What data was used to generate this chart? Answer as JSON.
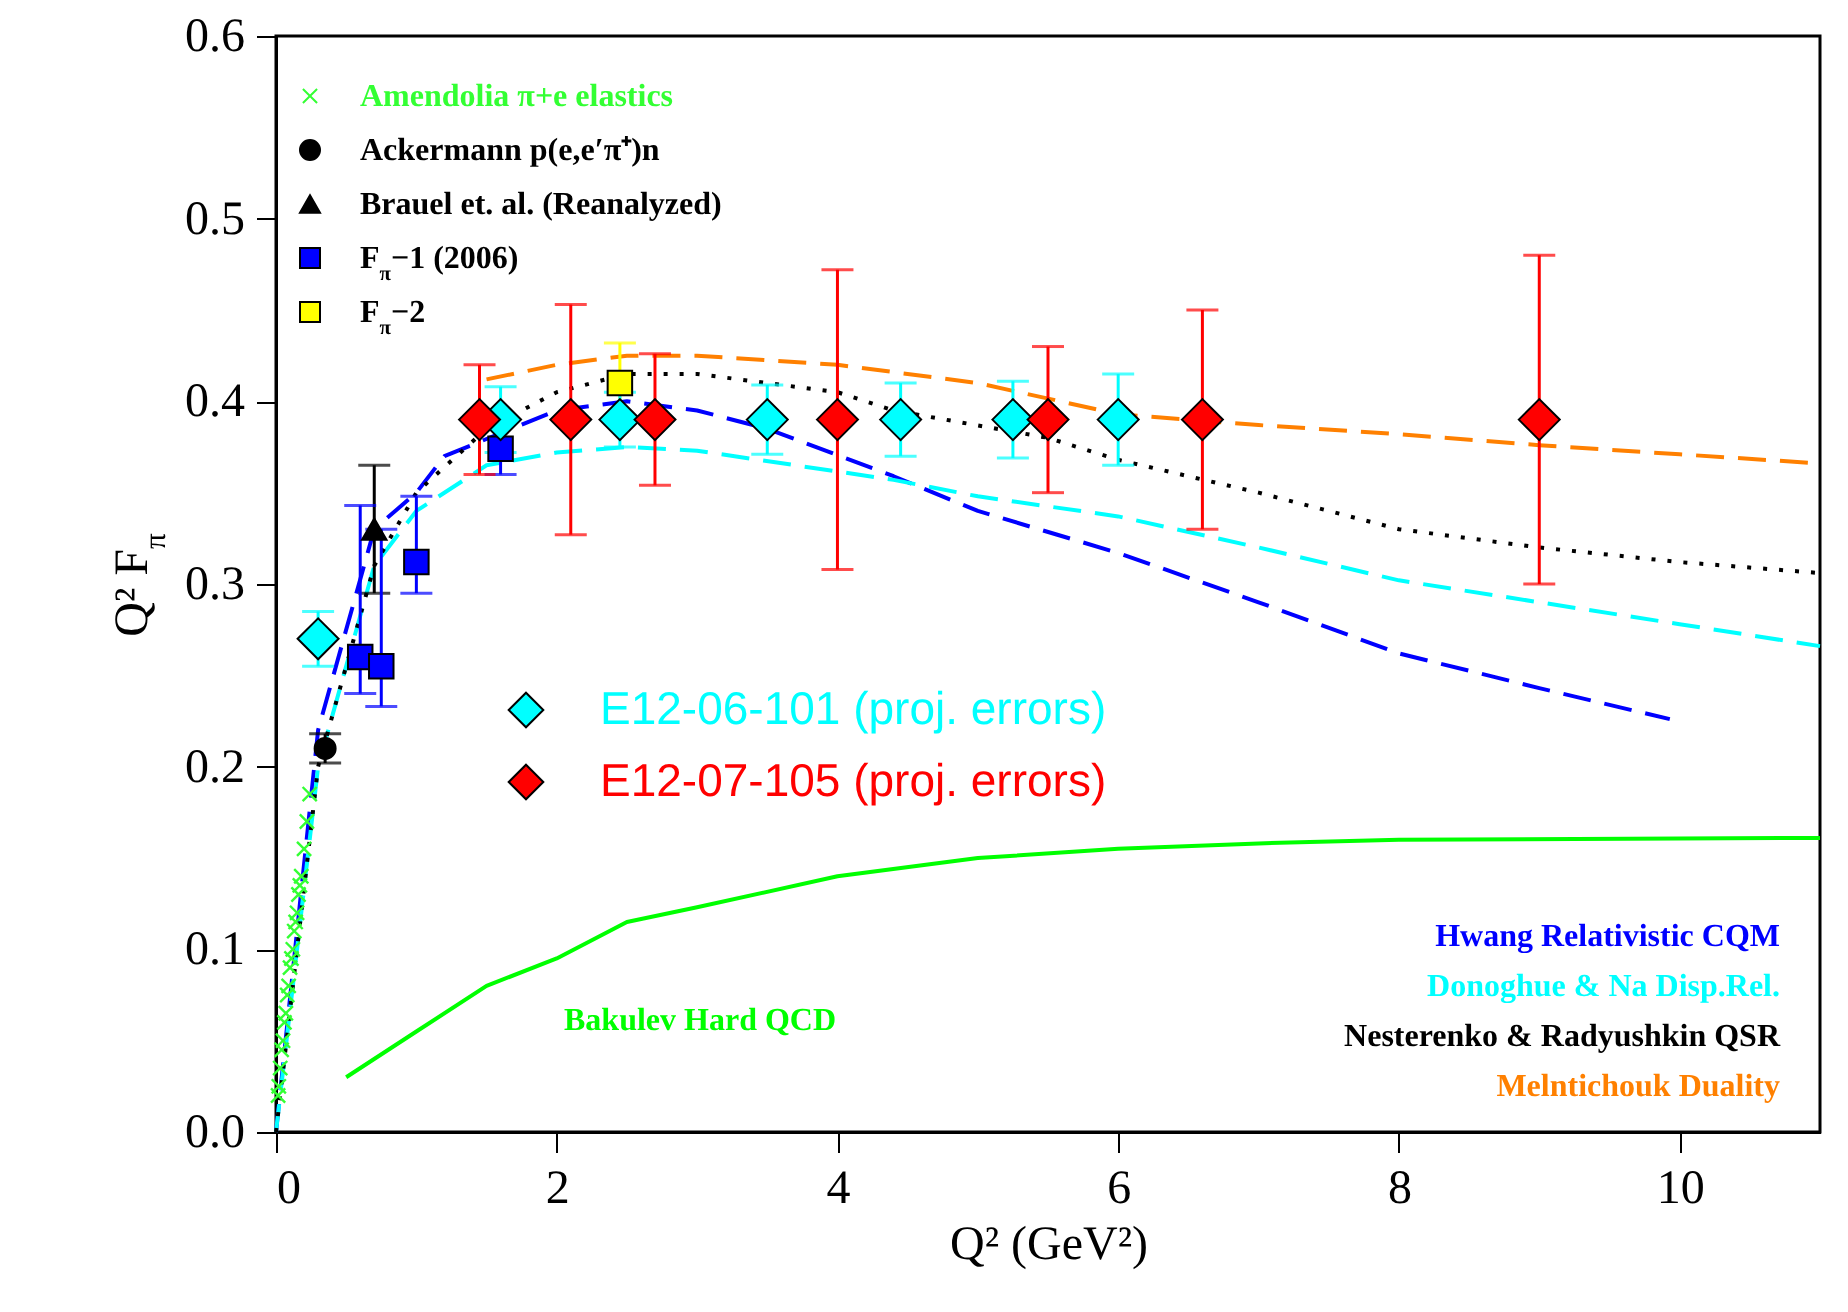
{
  "chart_data": {
    "type": "scatter",
    "xlabel": "Q² (GeV²)",
    "ylabel": "Q² F$_{π}$",
    "xlim": [
      0,
      11
    ],
    "ylim": [
      0,
      0.6
    ],
    "xticks": [
      0,
      2,
      4,
      6,
      8,
      10
    ],
    "yticks": [
      {
        "value": 0,
        "label": "0.0"
      },
      {
        "value": 0.1,
        "label": "0.1"
      },
      {
        "value": 0.2,
        "label": "0.2"
      },
      {
        "value": 0.3,
        "label": "0.3"
      },
      {
        "value": 0.4,
        "label": "0.4"
      },
      {
        "value": 0.5,
        "label": "0.5"
      },
      {
        "value": 0.6,
        "label": "0.6"
      }
    ],
    "legend": "top left",
    "series": [
      {
        "name": "Amendolia π+e elastics",
        "type": "scatter",
        "marker": "cross",
        "color": "#33ff33",
        "x": [
          0.015,
          0.02,
          0.03,
          0.04,
          0.05,
          0.06,
          0.07,
          0.08,
          0.09,
          0.1,
          0.11,
          0.12,
          0.13,
          0.14,
          0.15,
          0.16,
          0.17,
          0.18,
          0.2,
          0.22,
          0.24
        ],
        "values": [
          0.02,
          0.025,
          0.035,
          0.045,
          0.05,
          0.06,
          0.065,
          0.075,
          0.08,
          0.09,
          0.095,
          0.1,
          0.11,
          0.115,
          0.12,
          0.13,
          0.135,
          0.14,
          0.155,
          0.17,
          0.185
        ]
      },
      {
        "name": "Ackermann p(e,e′π⁺)n",
        "type": "scatter",
        "marker": "circle",
        "color": "#000000",
        "x": [
          0.35
        ],
        "values": [
          0.21
        ],
        "errors": [
          0.008
        ]
      },
      {
        "name": "Brauel et. al. (Reanalyzed)",
        "type": "scatter",
        "marker": "triangle",
        "color": "#000000",
        "x": [
          0.7
        ],
        "values": [
          0.33
        ],
        "errors": [
          0.035
        ]
      },
      {
        "name": "F$_{π}$−1 (2006)",
        "type": "scatter",
        "marker": "square",
        "color": "#0000ff",
        "x": [
          0.6,
          0.75,
          1.0,
          1.6
        ],
        "values": [
          0.26,
          0.255,
          0.312,
          0.374
        ],
        "errors": [
          [
            0.24,
            0.343
          ],
          [
            0.233,
            0.33
          ],
          [
            0.295,
            0.348
          ],
          [
            0.36,
            0.39
          ]
        ]
      },
      {
        "name": "F$_{π}$−2",
        "type": "scatter",
        "marker": "square",
        "color": "#ffff00",
        "x": [
          2.45
        ],
        "values": [
          0.41
        ],
        "errors": [
          0.022
        ]
      },
      {
        "name": "E12-06-101 (proj. errors)",
        "type": "scatter",
        "marker": "diamond",
        "color": "#00ffff",
        "x": [
          0.3,
          1.6,
          2.45,
          3.5,
          4.45,
          5.25,
          6.0
        ],
        "values": [
          0.27,
          0.39,
          0.39,
          0.39,
          0.39,
          0.39,
          0.39
        ],
        "errors": [
          0.015,
          0.018,
          0.015,
          0.019,
          0.02,
          0.021,
          0.025
        ]
      },
      {
        "name": "E12-07-105 (proj. errors)",
        "type": "scatter",
        "marker": "diamond",
        "color": "#ff0000",
        "x": [
          1.45,
          2.1,
          2.7,
          4.0,
          5.5,
          6.6,
          9.0
        ],
        "values": [
          0.39,
          0.39,
          0.39,
          0.39,
          0.39,
          0.39,
          0.39
        ],
        "errors": [
          0.03,
          0.063,
          0.036,
          0.082,
          0.04,
          0.06,
          0.09
        ]
      },
      {
        "name": "Hwang Relativistic CQM",
        "type": "line",
        "line_style": "dashed",
        "color": "#0000ff",
        "x": [
          0,
          0.3,
          0.7,
          1.0,
          1.2,
          2,
          2.5,
          3,
          3.5,
          4.4,
          5,
          6,
          7,
          8,
          9,
          9.93
        ],
        "values": [
          0,
          0.22,
          0.33,
          0.35,
          0.37,
          0.395,
          0.4,
          0.395,
          0.385,
          0.359,
          0.34,
          0.317,
          0.29,
          0.262,
          0.243,
          0.226
        ]
      },
      {
        "name": "Donoghue & Na Disp.Rel.",
        "type": "line",
        "line_style": "dashed",
        "color": "#00ffff",
        "x": [
          0,
          0.3,
          0.7,
          1.0,
          1.5,
          2,
          2.5,
          3,
          4.4,
          5,
          6,
          7,
          8,
          9,
          10,
          11
        ],
        "values": [
          0,
          0.2,
          0.31,
          0.34,
          0.365,
          0.372,
          0.375,
          0.373,
          0.357,
          0.348,
          0.337,
          0.32,
          0.302,
          0.29,
          0.278,
          0.266
        ]
      },
      {
        "name": "Nesterenko & Radyushkin QSR",
        "type": "line",
        "line_style": "dotted",
        "color": "#000000",
        "x": [
          0,
          0.3,
          0.7,
          1,
          1.5,
          2,
          2.5,
          3,
          4,
          4.4,
          5.5,
          6,
          7,
          8,
          9,
          10,
          11
        ],
        "values": [
          0,
          0.2,
          0.31,
          0.35,
          0.385,
          0.405,
          0.415,
          0.415,
          0.405,
          0.395,
          0.38,
          0.368,
          0.35,
          0.33,
          0.32,
          0.312,
          0.306
        ]
      },
      {
        "name": "Melntichouk Duality",
        "type": "line",
        "line_style": "dashed",
        "color": "#ff8000",
        "x": [
          1.5,
          2,
          2.5,
          3,
          4,
          5,
          6,
          7,
          8,
          9,
          10,
          11
        ],
        "values": [
          0.412,
          0.42,
          0.425,
          0.425,
          0.42,
          0.41,
          0.393,
          0.387,
          0.382,
          0.376,
          0.371,
          0.366
        ]
      },
      {
        "name": "Bakulev Hard QCD",
        "type": "line",
        "line_style": "solid",
        "color": "#00ff00",
        "x": [
          0.5,
          1,
          1.5,
          2,
          2.5,
          3,
          4,
          5,
          6,
          7,
          8,
          11
        ],
        "values": [
          0.03,
          0.055,
          0.08,
          0.095,
          0.115,
          0.123,
          0.14,
          0.15,
          0.155,
          0.158,
          0.16,
          0.161
        ]
      }
    ]
  }
}
